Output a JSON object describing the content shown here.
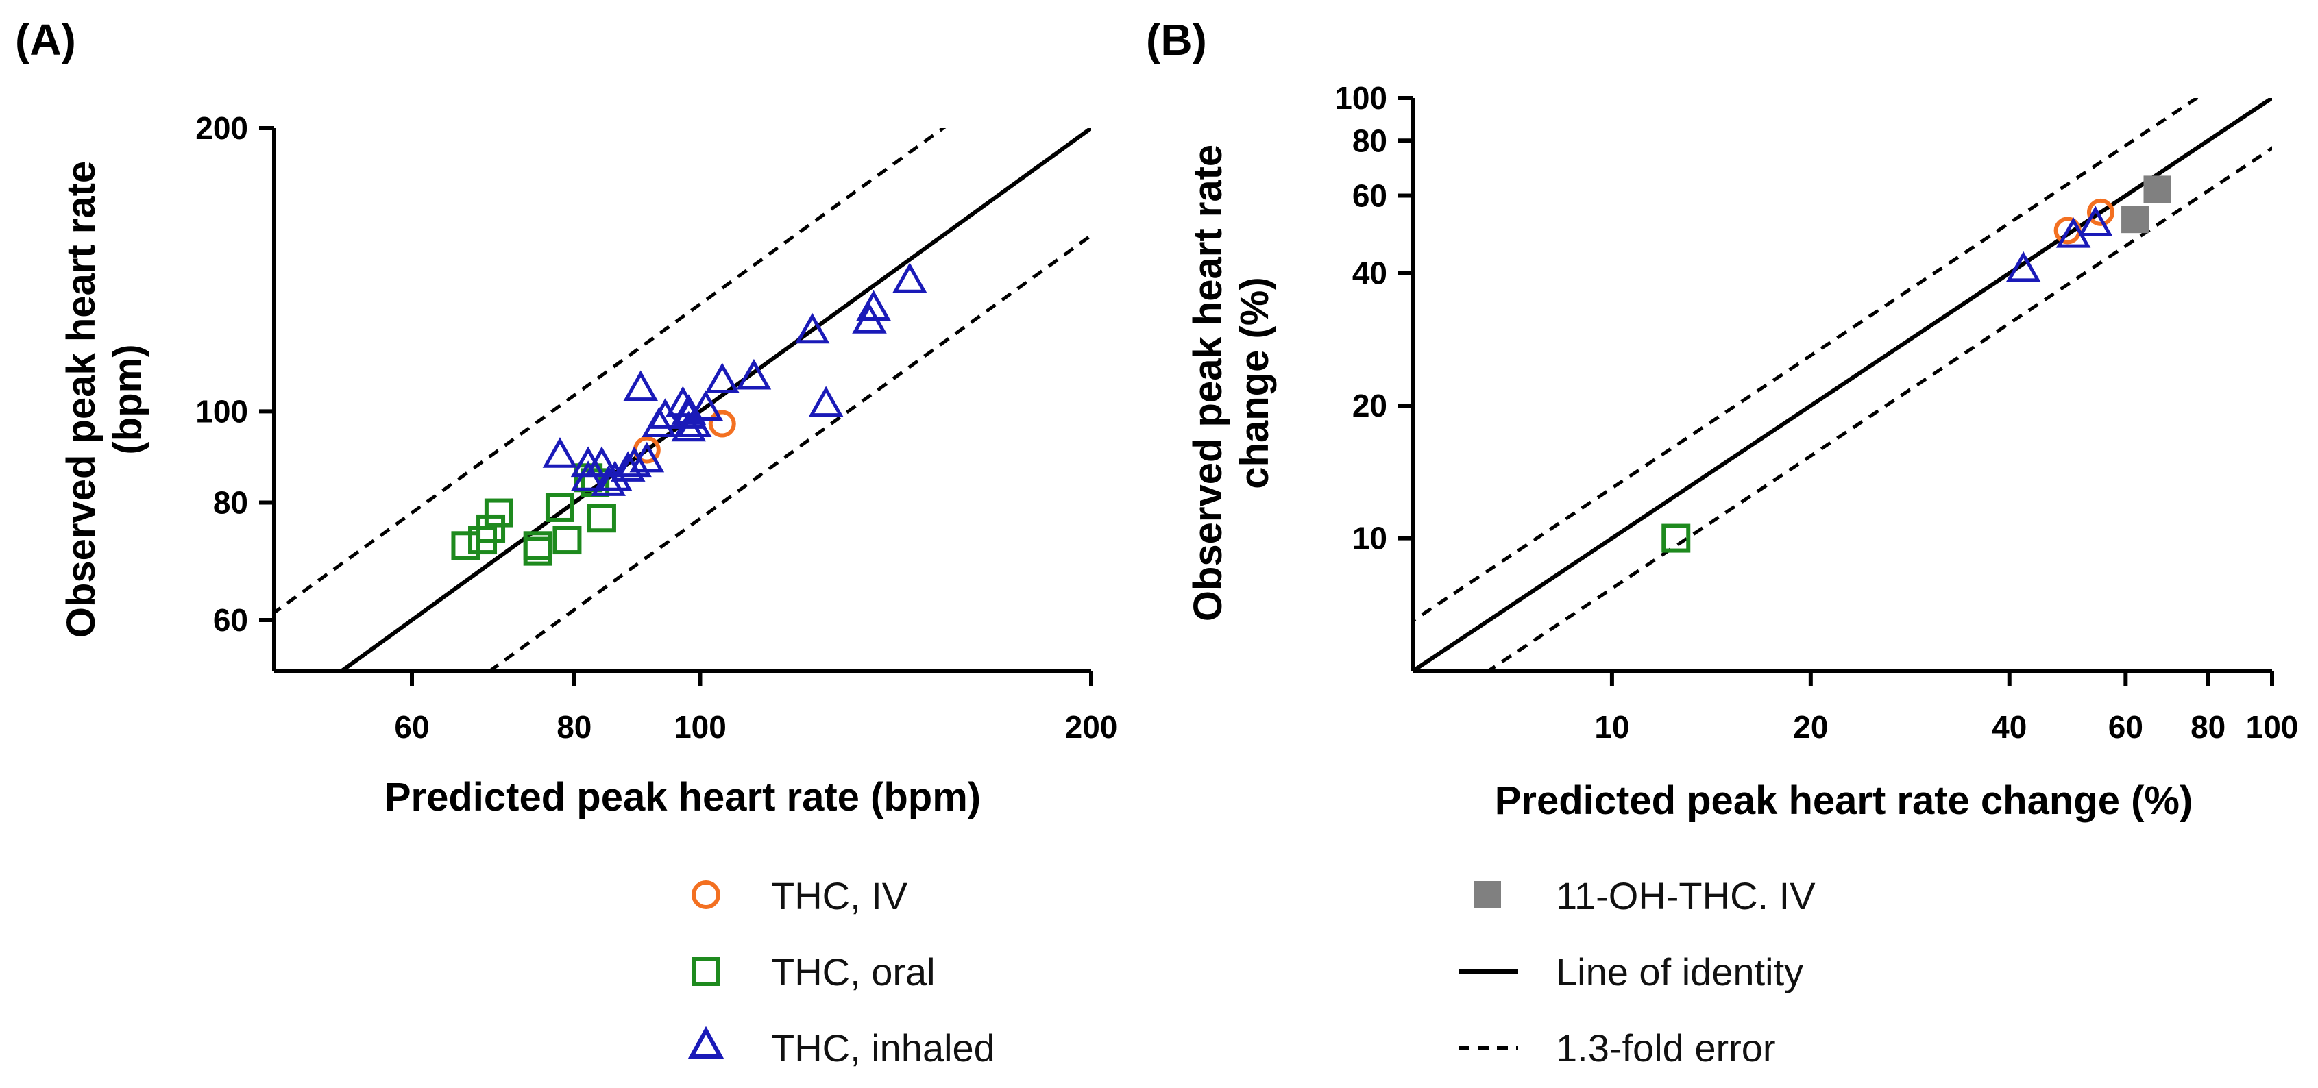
{
  "colors": {
    "thc_iv": "#F37021",
    "thc_oral": "#1E8A1E",
    "thc_inhaled": "#1A1AB8",
    "oh_thc_iv": "#808080",
    "axis": "#000000"
  },
  "chart_data": [
    {
      "panel": "(A)",
      "type": "scatter",
      "xscale": "log",
      "yscale": "log",
      "xlabel": "Predicted peak heart rate (bpm)",
      "ylabel": "Observed peak heart rate (bpm)",
      "ylabel_lines": [
        "Observed peak heart rate",
        "(bpm)"
      ],
      "xlim": [
        47,
        200
      ],
      "ylim": [
        53,
        200
      ],
      "xticks": [
        60,
        80,
        100,
        200
      ],
      "yticks": [
        60,
        80,
        100,
        200
      ],
      "reference_lines": [
        {
          "name": "Line of identity",
          "fold": 1.0,
          "style": "solid"
        },
        {
          "name": "1.3-fold error upper",
          "fold": 1.3,
          "style": "dashed"
        },
        {
          "name": "1.3-fold error lower",
          "fold": 0.769,
          "style": "dashed"
        }
      ],
      "series": [
        {
          "name": "THC, IV",
          "marker": "circle",
          "color": "#F37021",
          "points": [
            [
              91,
              91
            ],
            [
              104,
              97
            ]
          ]
        },
        {
          "name": "THC, oral",
          "marker": "square",
          "color": "#1E8A1E",
          "points": [
            [
              66,
              72
            ],
            [
              68,
              73
            ],
            [
              69,
              75
            ],
            [
              70,
              78
            ],
            [
              75,
              71
            ],
            [
              75,
              72
            ],
            [
              79,
              73
            ],
            [
              78,
              79
            ],
            [
              82,
              85
            ],
            [
              83,
              84
            ],
            [
              84,
              77
            ]
          ]
        },
        {
          "name": "THC, inhaled",
          "marker": "triangle",
          "color": "#1A1AB8",
          "points": [
            [
              78,
              90
            ],
            [
              82,
              88
            ],
            [
              82,
              85
            ],
            [
              84,
              88
            ],
            [
              85,
              84
            ],
            [
              86,
              85
            ],
            [
              88,
              87
            ],
            [
              89,
              88
            ],
            [
              91,
              89
            ],
            [
              90,
              106
            ],
            [
              93,
              97
            ],
            [
              94,
              99
            ],
            [
              97,
              102
            ],
            [
              98,
              99
            ],
            [
              98,
              100
            ],
            [
              98,
              96
            ],
            [
              99,
              97
            ],
            [
              101,
              101
            ],
            [
              104,
              108
            ],
            [
              110,
              109
            ],
            [
              122,
              122
            ],
            [
              125,
              102
            ],
            [
              135,
              125
            ],
            [
              136,
              129
            ],
            [
              145,
              138
            ]
          ]
        }
      ]
    },
    {
      "panel": "(B)",
      "type": "scatter",
      "xscale": "log",
      "yscale": "log",
      "xlabel": "Predicted peak heart rate change (%)",
      "ylabel": "Observed peak heart rate change (%)",
      "ylabel_lines": [
        "Observed peak heart rate",
        "change (%)"
      ],
      "xlim": [
        5,
        100
      ],
      "ylim": [
        5,
        100
      ],
      "xticks": [
        10,
        20,
        40,
        60,
        80,
        100
      ],
      "yticks": [
        10,
        20,
        40,
        60,
        80,
        100
      ],
      "reference_lines": [
        {
          "name": "Line of identity",
          "fold": 1.0,
          "style": "solid"
        },
        {
          "name": "1.3-fold error upper",
          "fold": 1.3,
          "style": "dashed"
        },
        {
          "name": "1.3-fold error lower",
          "fold": 0.769,
          "style": "dashed"
        }
      ],
      "series": [
        {
          "name": "THC, IV",
          "marker": "circle",
          "color": "#F37021",
          "points": [
            [
              49,
              50
            ],
            [
              55,
              55
            ]
          ]
        },
        {
          "name": "THC, oral",
          "marker": "square",
          "color": "#1E8A1E",
          "points": [
            [
              12.5,
              10
            ]
          ]
        },
        {
          "name": "THC, inhaled",
          "marker": "triangle",
          "color": "#1A1AB8",
          "points": [
            [
              42,
              41
            ],
            [
              50,
              49
            ],
            [
              54,
              52
            ]
          ]
        },
        {
          "name": "11-OH-THC. IV",
          "marker": "filled-square",
          "color": "#808080",
          "points": [
            [
              62,
              53
            ],
            [
              67,
              62
            ]
          ]
        }
      ]
    }
  ],
  "legend": {
    "items": [
      {
        "label": "THC, IV",
        "symbol": "circle",
        "color": "#F37021"
      },
      {
        "label": "THC, oral",
        "symbol": "square",
        "color": "#1E8A1E"
      },
      {
        "label": "THC, inhaled",
        "symbol": "triangle",
        "color": "#1A1AB8"
      },
      {
        "label": "11-OH-THC. IV",
        "symbol": "filled-square",
        "color": "#808080"
      },
      {
        "label": "Line of identity",
        "symbol": "solid-line",
        "color": "#000000"
      },
      {
        "label": "1.3-fold error",
        "symbol": "dashed-line",
        "color": "#000000"
      }
    ]
  }
}
